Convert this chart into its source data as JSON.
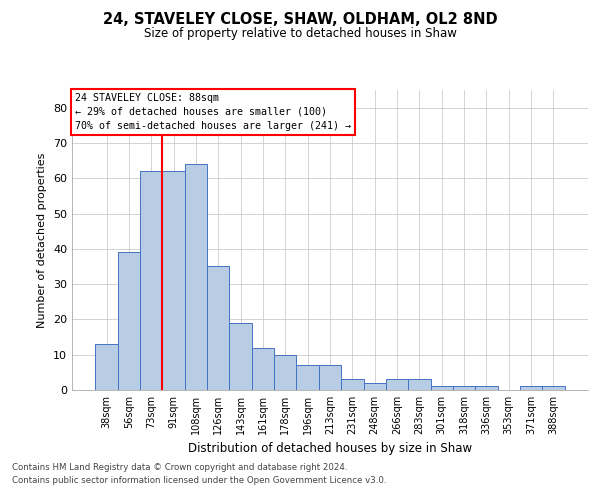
{
  "title1": "24, STAVELEY CLOSE, SHAW, OLDHAM, OL2 8ND",
  "title2": "Size of property relative to detached houses in Shaw",
  "xlabel": "Distribution of detached houses by size in Shaw",
  "ylabel": "Number of detached properties",
  "categories": [
    "38sqm",
    "56sqm",
    "73sqm",
    "91sqm",
    "108sqm",
    "126sqm",
    "143sqm",
    "161sqm",
    "178sqm",
    "196sqm",
    "213sqm",
    "231sqm",
    "248sqm",
    "266sqm",
    "283sqm",
    "301sqm",
    "318sqm",
    "336sqm",
    "353sqm",
    "371sqm",
    "388sqm"
  ],
  "values": [
    13,
    39,
    62,
    62,
    64,
    35,
    19,
    12,
    10,
    7,
    7,
    3,
    2,
    3,
    3,
    1,
    1,
    1,
    0,
    1,
    1
  ],
  "bar_color": "#b8cce4",
  "bar_edge_color": "#4472c4",
  "vline_color": "red",
  "vline_pos": 2.5,
  "annotation_line1": "24 STAVELEY CLOSE: 88sqm",
  "annotation_line2": "← 29% of detached houses are smaller (100)",
  "annotation_line3": "70% of semi-detached houses are larger (241) →",
  "ylim": [
    0,
    85
  ],
  "yticks": [
    0,
    10,
    20,
    30,
    40,
    50,
    60,
    70,
    80
  ],
  "footer1": "Contains HM Land Registry data © Crown copyright and database right 2024.",
  "footer2": "Contains public sector information licensed under the Open Government Licence v3.0.",
  "background_color": "#ffffff",
  "grid_color": "#cccccc"
}
